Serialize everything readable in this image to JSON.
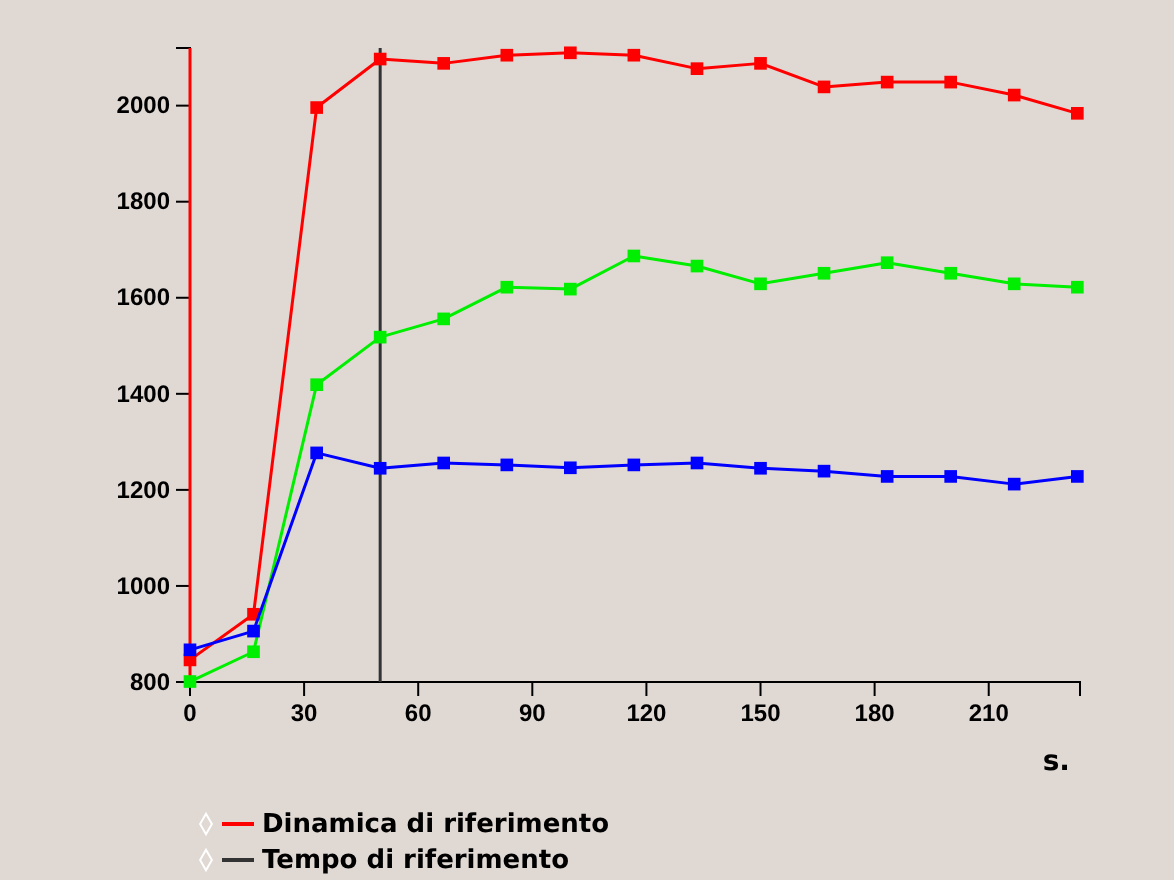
{
  "chart_data": {
    "type": "line",
    "xlabel": "s.",
    "x": [
      0,
      16.7,
      33.3,
      50,
      66.7,
      83.3,
      100,
      116.7,
      133.3,
      150,
      166.7,
      183.3,
      200,
      216.7,
      233.3
    ],
    "series": [
      {
        "color": "#ff0000",
        "values": [
          846,
          941,
          1996,
          2097,
          2088,
          2105,
          2110,
          2105,
          2077,
          2088,
          2039,
          2049,
          2049,
          2022,
          1984
        ]
      },
      {
        "color": "#00ee00",
        "values": [
          801,
          863,
          1419,
          1518,
          1556,
          1622,
          1618,
          1687,
          1666,
          1629,
          1651,
          1673,
          1651,
          1629,
          1622
        ]
      },
      {
        "color": "#0000ff",
        "values": [
          867,
          906,
          1277,
          1245,
          1256,
          1252,
          1246,
          1252,
          1256,
          1245,
          1239,
          1228,
          1228,
          1212,
          1228
        ]
      }
    ],
    "xlim": [
      0,
      234
    ],
    "xticks": [
      0,
      30,
      60,
      90,
      120,
      150,
      180,
      210
    ],
    "ylim": [
      800,
      2120
    ],
    "yticks": [
      800,
      1000,
      1200,
      1400,
      1600,
      1800,
      2000
    ],
    "ref_lines": [
      {
        "axis": "x",
        "value": 0,
        "label": "Dinamica di riferimento",
        "color": "#ff0000"
      },
      {
        "axis": "x",
        "value": 50,
        "label": "Tempo di riferimento",
        "color": "#333333"
      }
    ],
    "marker": "square",
    "line_style": "solid",
    "grid": false,
    "legend": "bottom"
  }
}
